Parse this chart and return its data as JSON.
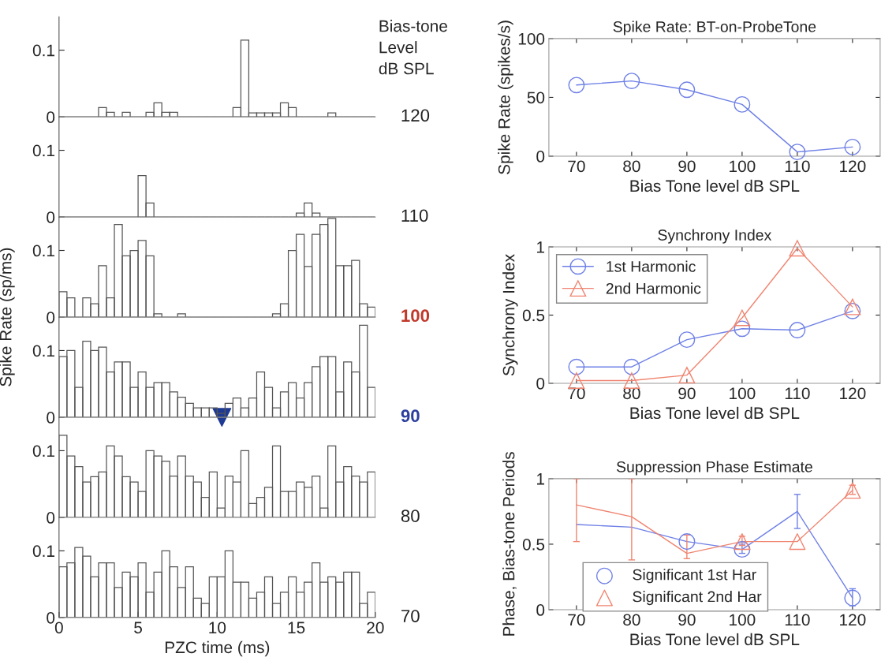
{
  "chart_data": [
    {
      "type": "histogram",
      "bins": [
        0,
        0.5,
        1,
        1.5,
        2,
        2.5,
        3,
        3.5,
        4,
        4.5,
        5,
        5.5,
        6,
        6.5,
        7,
        7.5,
        8,
        8.5,
        9,
        9.5,
        10,
        10.5,
        11,
        11.5,
        12,
        12.5,
        13,
        13.5,
        14,
        14.5,
        15,
        15.5,
        16,
        16.5,
        17,
        17.5,
        18,
        18.5,
        19,
        19.5,
        20
      ],
      "color": "#555555",
      "xlim": [
        0,
        20
      ],
      "ylim": [
        0,
        0.15
      ],
      "xticks": [
        0,
        5,
        10,
        15,
        20
      ],
      "yticks": [
        0,
        0.1
      ],
      "tick_labels": "y",
      "annotations": [
        "Bias-tone\nLevel\ndB SPL",
        "120"
      ],
      "values": [
        0,
        0,
        0,
        0,
        0,
        0.014,
        0.007,
        0,
        0.007,
        0,
        0,
        0.007,
        0.021,
        0.007,
        0.007,
        0,
        0,
        0,
        0,
        0,
        0,
        0,
        0.014,
        0.115,
        0.006,
        0.006,
        0.006,
        0.006,
        0.021,
        0.014,
        0,
        0,
        0,
        0,
        0.006,
        0,
        0,
        0,
        0,
        0
      ]
    },
    {
      "type": "histogram",
      "bins": [
        0,
        0.5,
        1,
        1.5,
        2,
        2.5,
        3,
        3.5,
        4,
        4.5,
        5,
        5.5,
        6,
        6.5,
        7,
        7.5,
        8,
        8.5,
        9,
        9.5,
        10,
        10.5,
        11,
        11.5,
        12,
        12.5,
        13,
        13.5,
        14,
        14.5,
        15,
        15.5,
        16,
        16.5,
        17,
        17.5,
        18,
        18.5,
        19,
        19.5,
        20
      ],
      "color": "#555555",
      "xlim": [
        0,
        20
      ],
      "ylim": [
        0,
        0.15
      ],
      "xticks": [
        0,
        5,
        10,
        15,
        20
      ],
      "yticks": [
        0,
        0.1
      ],
      "tick_labels": "y",
      "annotations": [
        "110"
      ],
      "values": [
        0,
        0,
        0,
        0,
        0,
        0,
        0,
        0,
        0,
        0,
        0.062,
        0.021,
        0,
        0,
        0,
        0,
        0,
        0,
        0,
        0,
        0,
        0,
        0,
        0,
        0,
        0,
        0,
        0,
        0,
        0,
        0.006,
        0.021,
        0.006,
        0,
        0,
        0,
        0,
        0,
        0,
        0
      ]
    },
    {
      "type": "histogram",
      "bins": [
        0,
        0.5,
        1,
        1.5,
        2,
        2.5,
        3,
        3.5,
        4,
        4.5,
        5,
        5.5,
        6,
        6.5,
        7,
        7.5,
        8,
        8.5,
        9,
        9.5,
        10,
        10.5,
        11,
        11.5,
        12,
        12.5,
        13,
        13.5,
        14,
        14.5,
        15,
        15.5,
        16,
        16.5,
        17,
        17.5,
        18,
        18.5,
        19,
        19.5,
        20
      ],
      "color": "#555555",
      "xlim": [
        0,
        20
      ],
      "ylim": [
        0,
        0.15
      ],
      "xticks": [
        0,
        5,
        10,
        15,
        20
      ],
      "yticks": [
        0,
        0.1
      ],
      "tick_labels": "y",
      "annotations": [
        "100"
      ],
      "values": [
        0.038,
        0.029,
        0,
        0.029,
        0.02,
        0.077,
        0.029,
        0.139,
        0.092,
        0.1,
        0.115,
        0.092,
        0.005,
        0,
        0,
        0.005,
        0,
        0,
        0,
        0,
        0,
        0,
        0,
        0,
        0,
        0,
        0,
        0.005,
        0.02,
        0.1,
        0.124,
        0.076,
        0.124,
        0.139,
        0.148,
        0.077,
        0.077,
        0.085,
        0.02,
        0.015
      ]
    },
    {
      "type": "histogram",
      "bins": [
        0,
        0.5,
        1,
        1.5,
        2,
        2.5,
        3,
        3.5,
        4,
        4.5,
        5,
        5.5,
        6,
        6.5,
        7,
        7.5,
        8,
        8.5,
        9,
        9.5,
        10,
        10.5,
        11,
        11.5,
        12,
        12.5,
        13,
        13.5,
        14,
        14.5,
        15,
        15.5,
        16,
        16.5,
        17,
        17.5,
        18,
        18.5,
        19,
        19.5,
        20
      ],
      "color": "#555555",
      "xlim": [
        0,
        20
      ],
      "ylim": [
        0,
        0.15
      ],
      "xticks": [
        0,
        5,
        10,
        15,
        20
      ],
      "yticks": [
        0,
        0.1
      ],
      "tick_labels": "y",
      "annotations": [
        "90"
      ],
      "values": [
        0.091,
        0.1,
        0.045,
        0.114,
        0.1,
        0.105,
        0.068,
        0.083,
        0.083,
        0.045,
        0.068,
        0.045,
        0.052,
        0.052,
        0.038,
        0.03,
        0.021,
        0.014,
        0.014,
        0.014,
        0.006,
        0.021,
        0.029,
        0.014,
        0.029,
        0.068,
        0.045,
        0.014,
        0.038,
        0.052,
        0.029,
        0.052,
        0.076,
        0.091,
        0.091,
        0.038,
        0.083,
        0.068,
        0.138,
        0.045
      ],
      "series": [
        {
          "type": "scatter",
          "x": [
            10.3
          ],
          "values": [
            0
          ],
          "color": "#1f3a93",
          "marker": "triangle"
        }
      ]
    },
    {
      "type": "histogram",
      "bins": [
        0,
        0.5,
        1,
        1.5,
        2,
        2.5,
        3,
        3.5,
        4,
        4.5,
        5,
        5.5,
        6,
        6.5,
        7,
        7.5,
        8,
        8.5,
        9,
        9.5,
        10,
        10.5,
        11,
        11.5,
        12,
        12.5,
        13,
        13.5,
        14,
        14.5,
        15,
        15.5,
        16,
        16.5,
        17,
        17.5,
        18,
        18.5,
        19,
        19.5,
        20
      ],
      "color": "#555555",
      "xlim": [
        0,
        20
      ],
      "ylim": [
        0,
        0.15
      ],
      "xticks": [
        0,
        5,
        10,
        15,
        20
      ],
      "yticks": [
        0,
        0.1
      ],
      "tick_labels": "y",
      "annotations": [
        "80"
      ],
      "values": [
        0.123,
        0.092,
        0.076,
        0.053,
        0.061,
        0.068,
        0.107,
        0.092,
        0.061,
        0.053,
        0.039,
        0.1,
        0.092,
        0.084,
        0.062,
        0.092,
        0.062,
        0.053,
        0.03,
        0.068,
        0.014,
        0.062,
        0.053,
        0.1,
        0.021,
        0.03,
        0.045,
        0.107,
        0.039,
        0.039,
        0.053,
        0.045,
        0.062,
        0.014,
        0.107,
        0.053,
        0.076,
        0.062,
        0.053,
        0.068
      ]
    },
    {
      "type": "histogram",
      "bins": [
        0,
        0.5,
        1,
        1.5,
        2,
        2.5,
        3,
        3.5,
        4,
        4.5,
        5,
        5.5,
        6,
        6.5,
        7,
        7.5,
        8,
        8.5,
        9,
        9.5,
        10,
        10.5,
        11,
        11.5,
        12,
        12.5,
        13,
        13.5,
        14,
        14.5,
        15,
        15.5,
        16,
        16.5,
        17,
        17.5,
        18,
        18.5,
        19,
        19.5,
        20
      ],
      "color": "#555555",
      "xlim": [
        0,
        20
      ],
      "ylim": [
        0,
        0.15
      ],
      "xticks": [
        0,
        5,
        10,
        15,
        20
      ],
      "yticks": [
        0,
        0.1
      ],
      "xlabel": "PZC time (ms)",
      "ylabel": "Spike Rate (sp/ms)",
      "annotations": [
        "70"
      ],
      "values": [
        0.076,
        0.082,
        0.105,
        0.092,
        0.061,
        0.082,
        0.082,
        0.045,
        0.068,
        0.061,
        0.082,
        0.038,
        0.068,
        0.1,
        0.076,
        0.045,
        0.076,
        0.029,
        0.021,
        0.061,
        0.061,
        0.1,
        0.053,
        0.053,
        0.029,
        0.038,
        0.061,
        0.021,
        0.038,
        0.061,
        0.038,
        0.053,
        0.082,
        0.053,
        0.061,
        0.053,
        0.068,
        0.068,
        0.021,
        0.038
      ]
    },
    {
      "type": "line",
      "title": "Spike Rate: BT-on-ProbeTone",
      "xlabel": "Bias Tone level dB SPL",
      "ylabel": "Spike Rate (spikes/s)",
      "x": [
        70,
        80,
        90,
        100,
        110,
        120
      ],
      "xlim": [
        65,
        125
      ],
      "xticks": [
        70,
        80,
        90,
        100,
        110,
        120
      ],
      "ylim": [
        0,
        100
      ],
      "yticks": [
        0,
        50,
        100
      ],
      "marker": "circle",
      "series": [
        {
          "color": "#6f80e6",
          "values": [
            60.5,
            64,
            56.5,
            44,
            3.6,
            7.8
          ]
        }
      ]
    },
    {
      "type": "line",
      "title": "Synchrony Index",
      "xlabel": "Bias Tone level dB SPL",
      "ylabel": "Synchrony Index",
      "x": [
        70,
        80,
        90,
        100,
        110,
        120
      ],
      "xlim": [
        65,
        125
      ],
      "xticks": [
        70,
        80,
        90,
        100,
        110,
        120
      ],
      "ylim": [
        0,
        1
      ],
      "yticks": [
        0,
        0.5,
        1
      ],
      "legend": "top left",
      "series": [
        {
          "name": "1st Harmonic",
          "color": "#6f80e6",
          "marker": "circle",
          "values": [
            0.12,
            0.12,
            0.32,
            0.4,
            0.39,
            0.53
          ]
        },
        {
          "name": "2nd Harmonic",
          "color": "#f08470",
          "marker": "triangle",
          "values": [
            0.02,
            0.02,
            0.06,
            0.48,
            0.99,
            0.56
          ]
        }
      ]
    },
    {
      "type": "line",
      "title": "Suppression Phase Estimate",
      "xlabel": "Bias Tone level dB SPL",
      "ylabel": "Phase, Bias-tone Periods",
      "x": [
        70,
        80,
        90,
        100,
        110,
        120
      ],
      "xlim": [
        65,
        125
      ],
      "xticks": [
        70,
        80,
        90,
        100,
        110,
        120
      ],
      "ylim": [
        0,
        1
      ],
      "yticks": [
        0,
        0.5,
        1
      ],
      "legend": "bottom left",
      "series": [
        {
          "color": "#6f80e6",
          "values": [
            0.65,
            0.63,
            0.52,
            0.46,
            0.75,
            0.09
          ],
          "errors": [
            null,
            null,
            null,
            [
              0.43,
              0.5
            ],
            [
              0.62,
              0.88
            ],
            [
              0.03,
              0.16
            ]
          ]
        },
        {
          "color": "#f08470",
          "values": [
            0.8,
            0.71,
            0.43,
            0.52,
            0.52,
            0.91
          ],
          "errors": [
            [
              0.52,
              1.0
            ],
            [
              0.38,
              1.0
            ],
            [
              0.39,
              0.57
            ],
            [
              0.49,
              0.56
            ],
            null,
            [
              0.88,
              0.95
            ]
          ]
        },
        {
          "type": "scatter",
          "name": "Significant 1st Har",
          "color": "#6f80e6",
          "marker": "circle",
          "x": [
            90,
            100,
            120
          ],
          "values": [
            0.52,
            0.46,
            0.09
          ]
        },
        {
          "type": "scatter",
          "name": "Significant 2nd Har",
          "color": "#f08470",
          "marker": "triangle",
          "x": [
            100,
            110,
            120
          ],
          "values": [
            0.52,
            0.52,
            0.91
          ]
        }
      ]
    }
  ]
}
